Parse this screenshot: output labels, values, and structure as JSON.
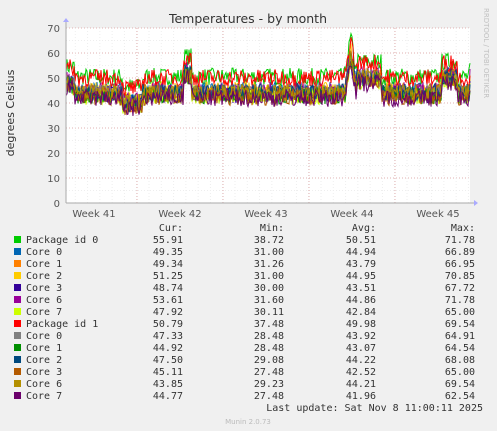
{
  "chart_data": {
    "type": "line",
    "title": "Temperatures - by month",
    "ylabel": "degrees Celsius",
    "xlabel": "",
    "side_label": "RRDTOOL / TOBI OETIKER",
    "ylim": [
      0,
      70
    ],
    "yticks": [
      "0",
      "10",
      "20",
      "30",
      "40",
      "50",
      "60",
      "70"
    ],
    "categories": [
      "Week 41",
      "Week 42",
      "Week 43",
      "Week 44",
      "Week 45"
    ],
    "grid": true,
    "colors": {
      "background": "#f0f0f0",
      "plot_area": "#ffffff",
      "major_grid": "#e0b0b0",
      "minor_grid": "#eeeeee",
      "axis": "#aaaaaa",
      "text": "#555555"
    },
    "legend_headers": [
      "Cur:",
      "Min:",
      "Avg:",
      "Max:"
    ],
    "series": [
      {
        "name": "Package id 0",
        "color": "#00cc00",
        "cur": "55.91",
        "min": "38.72",
        "avg": "50.51",
        "max": "71.78"
      },
      {
        "name": "Core 0",
        "color": "#0066b3",
        "cur": "49.35",
        "min": "31.00",
        "avg": "44.94",
        "max": "66.89"
      },
      {
        "name": "Core 1",
        "color": "#ff8000",
        "cur": "49.34",
        "min": "31.26",
        "avg": "43.79",
        "max": "66.95"
      },
      {
        "name": "Core 2",
        "color": "#ffcc00",
        "cur": "51.25",
        "min": "31.00",
        "avg": "44.95",
        "max": "70.85"
      },
      {
        "name": "Core 3",
        "color": "#330099",
        "cur": "48.74",
        "min": "30.00",
        "avg": "43.51",
        "max": "67.72"
      },
      {
        "name": "Core 6",
        "color": "#990099",
        "cur": "53.61",
        "min": "31.60",
        "avg": "44.86",
        "max": "71.78"
      },
      {
        "name": "Core 7",
        "color": "#ccff00",
        "cur": "47.92",
        "min": "30.11",
        "avg": "42.84",
        "max": "65.00"
      },
      {
        "name": "Package id 1",
        "color": "#ff0000",
        "cur": "50.79",
        "min": "37.48",
        "avg": "49.98",
        "max": "69.54"
      },
      {
        "name": "Core 0",
        "color": "#808080",
        "cur": "47.33",
        "min": "28.48",
        "avg": "43.92",
        "max": "64.91"
      },
      {
        "name": "Core 1",
        "color": "#008f00",
        "cur": "44.92",
        "min": "28.48",
        "avg": "43.07",
        "max": "64.54"
      },
      {
        "name": "Core 2",
        "color": "#00487d",
        "cur": "47.50",
        "min": "29.08",
        "avg": "44.22",
        "max": "68.08"
      },
      {
        "name": "Core 3",
        "color": "#b35a00",
        "cur": "45.11",
        "min": "27.48",
        "avg": "42.52",
        "max": "65.00"
      },
      {
        "name": "Core 6",
        "color": "#b38f00",
        "cur": "43.85",
        "min": "29.23",
        "avg": "44.21",
        "max": "69.54"
      },
      {
        "name": "Core 7",
        "color": "#6b006b",
        "cur": "44.77",
        "min": "27.48",
        "avg": "41.96",
        "max": "62.54"
      }
    ]
  },
  "footer": {
    "last_update": "Last update: Sat Nov  8 11:00:11 2025",
    "version": "Munin 2.0.73"
  }
}
